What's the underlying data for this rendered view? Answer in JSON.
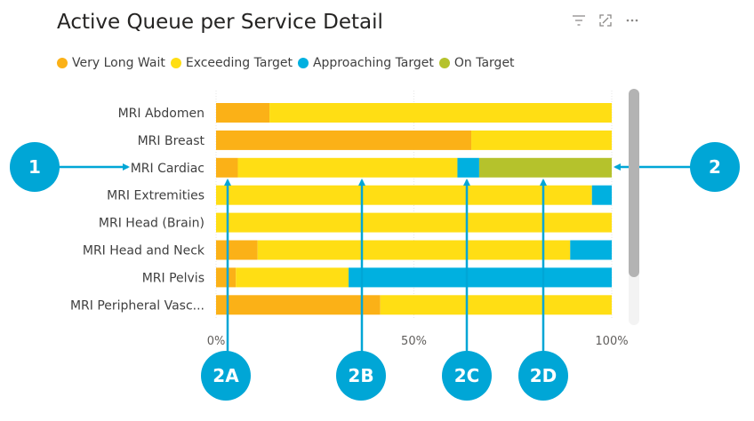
{
  "title": "Active Queue per Service Detail",
  "toolbar": {
    "icons": [
      "filter-icon",
      "focus-mode-icon",
      "more-options-icon"
    ]
  },
  "legend": [
    {
      "name": "Very Long Wait",
      "color": "#FBB117"
    },
    {
      "name": "Exceeding Target",
      "color": "#FFDE14"
    },
    {
      "name": "Approaching Target",
      "color": "#00B0E0"
    },
    {
      "name": "On Target",
      "color": "#B5C22C"
    }
  ],
  "chart_data": {
    "type": "bar",
    "orientation": "horizontal",
    "stacking": "percent",
    "categories": [
      "MRI Abdomen",
      "MRI Breast",
      "MRI Cardiac",
      "MRI Extremities",
      "MRI Head (Brain)",
      "MRI Head and Neck",
      "MRI Pelvis",
      "MRI Peripheral Vasc..."
    ],
    "series": [
      {
        "name": "Very Long Wait",
        "color": "#FBB117",
        "values": [
          13.5,
          64.5,
          5.5,
          0,
          0,
          10.5,
          5,
          41.5
        ]
      },
      {
        "name": "Exceeding Target",
        "color": "#FFDE14",
        "values": [
          86.5,
          35.5,
          55.5,
          95,
          100,
          79,
          28.5,
          58.5
        ]
      },
      {
        "name": "Approaching Target",
        "color": "#00B0E0",
        "values": [
          0,
          0,
          5.5,
          5,
          0,
          10.5,
          66.5,
          0
        ]
      },
      {
        "name": "On Target",
        "color": "#B5C22C",
        "values": [
          0,
          0,
          33.5,
          0,
          0,
          0,
          0,
          0
        ]
      }
    ],
    "xticks": [
      "0%",
      "50%",
      "100%"
    ],
    "xlim": [
      0,
      100
    ],
    "grid": true,
    "legend_position": "top-left"
  },
  "annotations": {
    "color": "#00A6D6",
    "badges": [
      "1",
      "2",
      "2A",
      "2B",
      "2C",
      "2D"
    ]
  },
  "scrollbar": {
    "visible": true
  }
}
